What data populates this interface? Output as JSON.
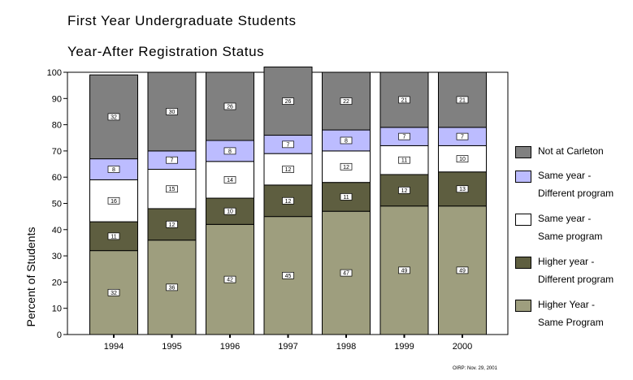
{
  "titles": {
    "line1": "First Year Undergraduate Students",
    "line2": "Year-After Registration Status"
  },
  "source_note": "OIRP: Nov. 29, 2001",
  "chart_data": {
    "type": "bar",
    "stacked": true,
    "categories": [
      "1994",
      "1995",
      "1996",
      "1997",
      "1998",
      "1999",
      "2000"
    ],
    "ylabel": "Percent of Students",
    "xlabel": "",
    "ylim": [
      0,
      100
    ],
    "yticks": [
      0,
      10,
      20,
      30,
      40,
      50,
      60,
      70,
      80,
      90,
      100
    ],
    "grid": false,
    "legend_position": "right",
    "series": [
      {
        "name": "Higher Year - Same Program",
        "color": "#9e9e7e",
        "values": [
          32,
          36,
          42,
          45,
          47,
          49,
          49
        ]
      },
      {
        "name": "Higher year - Different program",
        "color": "#5e5e40",
        "values": [
          11,
          12,
          10,
          12,
          11,
          12,
          13
        ]
      },
      {
        "name": "Same year - Same program",
        "color": "#ffffff",
        "values": [
          16,
          15,
          14,
          12,
          12,
          11,
          10
        ]
      },
      {
        "name": "Same year - Different program",
        "color": "#bcbcff",
        "values": [
          8,
          7,
          8,
          7,
          8,
          7,
          7
        ]
      },
      {
        "name": "Not at Carleton",
        "color": "#808080",
        "values": [
          32,
          30,
          26,
          26,
          22,
          21,
          21
        ]
      }
    ]
  },
  "legend": [
    {
      "line1": "Not at Carleton",
      "line2": "",
      "color": "#808080"
    },
    {
      "line1": "Same year   -",
      "line2": "Different program",
      "color": "#bcbcff"
    },
    {
      "line1": "Same year   -",
      "line2": "Same program",
      "color": "#ffffff"
    },
    {
      "line1": "Higher year -",
      "line2": "Different program",
      "color": "#5e5e40"
    },
    {
      "line1": "Higher Year -",
      "line2": "Same Program",
      "color": "#9e9e7e"
    }
  ]
}
